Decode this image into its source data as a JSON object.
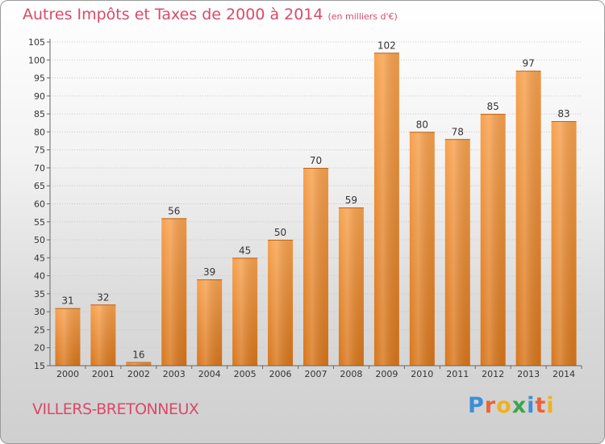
{
  "title": "Autres Impôts et Taxes de 2000 à 2014",
  "subtitle": "(en milliers d'€)",
  "commune": "VILLERS-BRETONNEUX",
  "logo": {
    "letters": [
      {
        "char": "P",
        "color": "#3a8fd8"
      },
      {
        "char": "r",
        "color": "#e8643a"
      },
      {
        "char": "o",
        "color": "#f0b020"
      },
      {
        "char": "x",
        "color": "#3aa64a"
      },
      {
        "char": "i",
        "color": "#3a8fd8"
      },
      {
        "char": "t",
        "color": "#e8643a"
      },
      {
        "char": "i",
        "color": "#f0b020"
      }
    ]
  },
  "colors": {
    "bar_top": "#f7a14e",
    "bar_bottom": "#d8761b",
    "grid": "#c8c8c8",
    "text": "#333333",
    "title": "#d94a6a"
  },
  "chart_data": {
    "type": "bar",
    "categories": [
      "2000",
      "2001",
      "2002",
      "2003",
      "2004",
      "2005",
      "2006",
      "2007",
      "2008",
      "2009",
      "2010",
      "2011",
      "2012",
      "2013",
      "2014"
    ],
    "values": [
      31,
      32,
      16,
      56,
      39,
      45,
      50,
      70,
      59,
      102,
      80,
      78,
      85,
      97,
      83
    ],
    "data_labels": [
      "31",
      "32",
      "16",
      "56",
      "39",
      "45",
      "50",
      "70",
      "59",
      "102",
      "80",
      "78",
      "85",
      "97",
      "83"
    ],
    "yticks": [
      15,
      20,
      25,
      30,
      35,
      40,
      45,
      50,
      55,
      60,
      65,
      70,
      75,
      80,
      85,
      90,
      95,
      100,
      105
    ],
    "ylim": [
      15,
      105
    ],
    "grid": true,
    "title": "Autres Impôts et Taxes de 2000 à 2014",
    "xlabel": "",
    "ylabel": ""
  }
}
